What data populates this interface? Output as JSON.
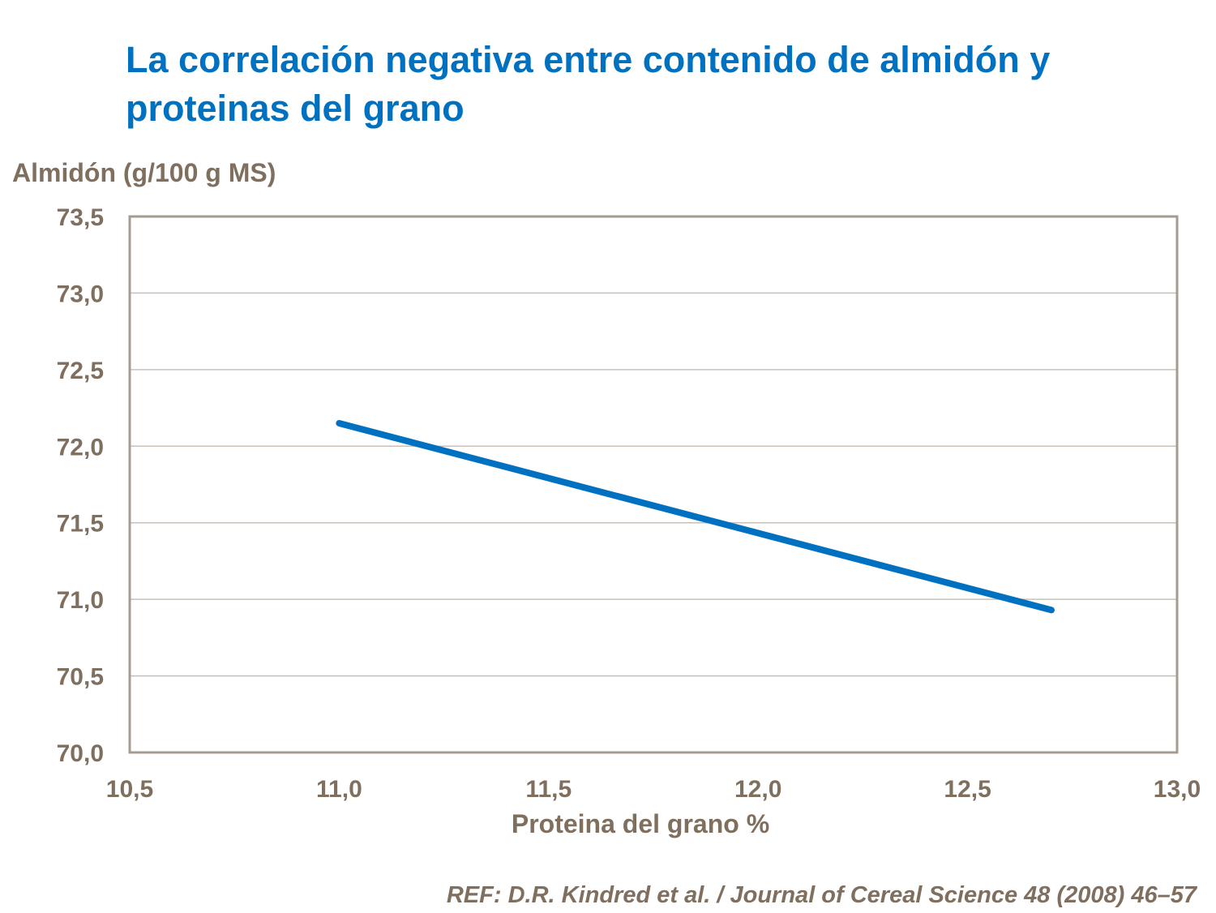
{
  "title": "La correlación negativa entre contenido de almidón y proteinas del grano",
  "reference": "REF: D.R. Kindred et al. / Journal of Cereal Science 48 (2008) 46–57",
  "chart_data": {
    "type": "line",
    "title": "La correlación negativa entre contenido de almidón y proteinas del grano",
    "xlabel": "Proteina del grano %",
    "ylabel": "Almidón (g/100 g MS)",
    "xlim": [
      10.5,
      13.0
    ],
    "ylim": [
      70.0,
      73.5
    ],
    "x_ticks": [
      "10,5",
      "11,0",
      "11,5",
      "12,0",
      "12,5",
      "13,0"
    ],
    "y_ticks": [
      "70,0",
      "70,5",
      "71,0",
      "71,5",
      "72,0",
      "72,5",
      "73,0",
      "73,5"
    ],
    "grid": "horizontal",
    "series": [
      {
        "x": [
          11.0,
          12.7
        ],
        "y": [
          72.15,
          70.93
        ],
        "color": "#0070C0"
      }
    ],
    "axis_color": "#A69B8F",
    "text_color": "#7F6F5F"
  }
}
